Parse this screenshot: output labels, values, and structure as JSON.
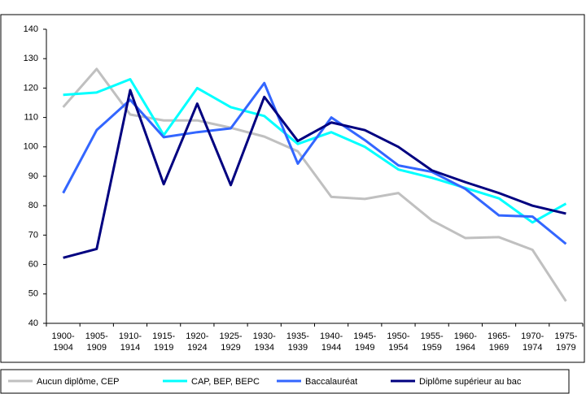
{
  "chart_data": {
    "type": "line",
    "categories": [
      [
        "1900-",
        "1904"
      ],
      [
        "1905-",
        "1909"
      ],
      [
        "1910-",
        "1914"
      ],
      [
        "1915-",
        "1919"
      ],
      [
        "1920-",
        "1924"
      ],
      [
        "1925-",
        "1929"
      ],
      [
        "1930-",
        "1934"
      ],
      [
        "1935-",
        "1939"
      ],
      [
        "1940-",
        "1944"
      ],
      [
        "1945-",
        "1949"
      ],
      [
        "1950-",
        "1954"
      ],
      [
        "1955-",
        "1959"
      ],
      [
        "1960-",
        "1964"
      ],
      [
        "1965-",
        "1969"
      ],
      [
        "1970-",
        "1974"
      ],
      [
        "1975-",
        "1979"
      ]
    ],
    "series": [
      {
        "name": "Aucun diplôme, CEP",
        "color": "#c0c0c0",
        "values": [
          113.5,
          126.5,
          111,
          109,
          109,
          106.5,
          103.5,
          98.5,
          83,
          82.3,
          84.3,
          75,
          69,
          69.3,
          65,
          47.5
        ]
      },
      {
        "name": "CAP, BEP, BEPC",
        "color": "#00ffff",
        "values": [
          117.7,
          118.5,
          123,
          104,
          120,
          113.5,
          110.5,
          101,
          105,
          100,
          92.3,
          89.5,
          86,
          82.5,
          74.3,
          80.7
        ]
      },
      {
        "name": "Baccalauréat",
        "color": "#3366ff",
        "values": [
          84.3,
          105.7,
          116,
          103.3,
          105,
          106.3,
          121.7,
          94.3,
          110,
          102.3,
          93.7,
          91.5,
          85.7,
          76.7,
          76.3,
          67
        ]
      },
      {
        "name": "Diplôme supérieur au bac",
        "color": "#000080",
        "values": [
          62.3,
          65.3,
          119.3,
          87.3,
          114.7,
          87,
          117,
          102,
          108.3,
          105.7,
          100,
          92,
          88,
          84.3,
          80,
          77.3
        ]
      }
    ],
    "ylim": [
      40,
      140
    ],
    "yticks": [
      40,
      50,
      60,
      70,
      80,
      90,
      100,
      110,
      120,
      130,
      140
    ],
    "grid": false
  }
}
